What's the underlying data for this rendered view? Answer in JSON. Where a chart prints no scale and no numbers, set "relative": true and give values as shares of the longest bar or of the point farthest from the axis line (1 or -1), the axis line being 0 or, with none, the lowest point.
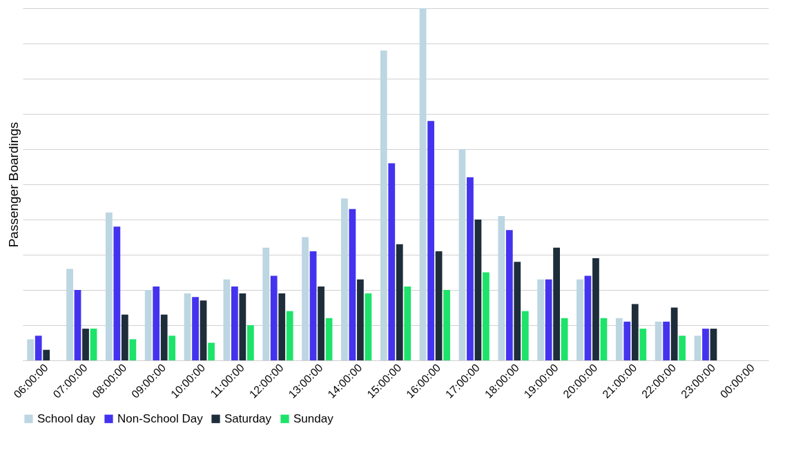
{
  "chart_data": {
    "type": "bar",
    "ylabel": "Passenger Boardings",
    "relative": true,
    "grid": "y",
    "legend": "bottom",
    "categories": [
      "06:00:00",
      "07:00:00",
      "08:00:00",
      "09:00:00",
      "10:00:00",
      "11:00:00",
      "12:00:00",
      "13:00:00",
      "14:00:00",
      "15:00:00",
      "16:00:00",
      "17:00:00",
      "18:00:00",
      "19:00:00",
      "20:00:00",
      "21:00:00",
      "22:00:00",
      "23:00:00",
      "00:00:00"
    ],
    "series": [
      {
        "name": "School day",
        "color": "#bcd6e2",
        "values": [
          0.06,
          0.26,
          0.42,
          0.2,
          0.19,
          0.23,
          0.32,
          0.35,
          0.46,
          0.88,
          1,
          0.6,
          0.41,
          0.23,
          0.23,
          0.12,
          0.11,
          0.07,
          null
        ]
      },
      {
        "name": "Non-School Day",
        "color": "#4433ee",
        "values": [
          0.07,
          0.2,
          0.38,
          0.21,
          0.18,
          0.21,
          0.24,
          0.31,
          0.43,
          0.56,
          0.68,
          0.52,
          0.37,
          0.23,
          0.24,
          0.11,
          0.11,
          0.09,
          null
        ]
      },
      {
        "name": "Saturday",
        "color": "#1e2d3a",
        "values": [
          0.03,
          0.09,
          0.13,
          0.13,
          0.17,
          0.19,
          0.19,
          0.21,
          0.23,
          0.33,
          0.31,
          0.4,
          0.28,
          0.32,
          0.29,
          0.16,
          0.15,
          0.09,
          null
        ]
      },
      {
        "name": "Sunday",
        "color": "#1ee36a",
        "values": [
          null,
          0.09,
          0.06,
          0.07,
          0.05,
          0.1,
          0.14,
          0.12,
          0.19,
          0.21,
          0.2,
          0.25,
          0.14,
          0.12,
          0.12,
          0.09,
          0.07,
          null,
          null
        ]
      }
    ]
  }
}
